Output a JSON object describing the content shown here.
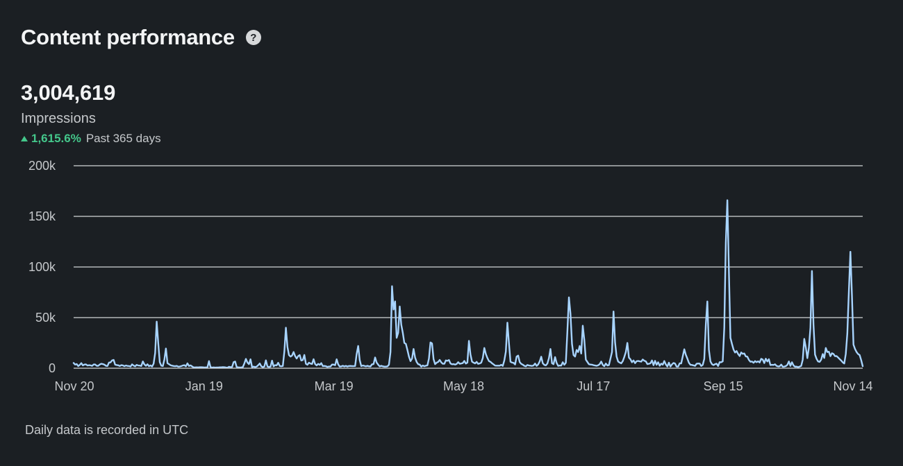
{
  "header": {
    "title": "Content performance",
    "help_icon": "question-circle-icon"
  },
  "summary": {
    "value": "3,004,619",
    "label": "Impressions",
    "change_icon": "triangle-up-icon",
    "change_pct": "1,615.6%",
    "change_period": "Past 365 days"
  },
  "colors": {
    "background": "#1b1f23",
    "line": "#a8d4ff",
    "grid": "#d4d6d8",
    "positive": "#44c78b",
    "axis_text": "#c5c8cb"
  },
  "chart_data": {
    "type": "line",
    "title": "",
    "xlabel": "",
    "ylabel": "",
    "ylim": [
      0,
      200000
    ],
    "yticks": [
      0,
      50000,
      100000,
      150000,
      200000
    ],
    "ytick_labels": [
      "0",
      "50k",
      "100k",
      "150k",
      "200k"
    ],
    "xtick_labels": [
      "Nov 20",
      "Jan 19",
      "Mar 19",
      "May 18",
      "Jul 17",
      "Sep 15",
      "Nov 14"
    ],
    "grid": true,
    "series": [
      {
        "values": [
          5200,
          3600,
          4100,
          2100,
          3300,
          5000,
          2800,
          3600,
          3800,
          2700,
          3000,
          2800,
          2300,
          3700,
          3700,
          2400,
          2400,
          3700,
          4400,
          4100,
          3500,
          2400,
          2200,
          5600,
          5800,
          7700,
          8200,
          3500,
          3100,
          2900,
          2200,
          3000,
          2800,
          2000,
          2700,
          2300,
          2200,
          1700,
          3800,
          2600,
          1900,
          3300,
          2700,
          2600,
          2200,
          6700,
          3800,
          2400,
          3900,
          2000,
          2800,
          1700,
          4500,
          15000,
          46000,
          25000,
          6000,
          2500,
          2200,
          8500,
          19500,
          5000,
          4000,
          3000,
          2500,
          2200,
          2000,
          2300,
          1600,
          1700,
          2100,
          2700,
          3000,
          1900,
          4800,
          2200,
          2800,
          1800,
          800,
          800,
          900,
          800,
          1000,
          1000,
          900,
          700,
          800,
          800,
          7000,
          1100,
          600,
          800,
          600,
          700,
          700,
          900,
          900,
          1100,
          1000,
          700,
          500,
          1400,
          1100,
          1200,
          6000,
          6600,
          1200,
          900,
          700,
          800,
          1100,
          4700,
          9200,
          5600,
          4000,
          8800,
          1100,
          1600,
          1100,
          1600,
          3000,
          4700,
          1900,
          1100,
          1700,
          7800,
          1700,
          1200,
          1600,
          7500,
          1800,
          3000,
          2800,
          5400,
          2200,
          1900,
          2200,
          16500,
          40000,
          21000,
          13000,
          11500,
          12500,
          16000,
          12000,
          9600,
          12000,
          13000,
          7600,
          8100,
          13100,
          4400,
          3400,
          5500,
          4600,
          4200,
          8900,
          4100,
          2800,
          4300,
          3300,
          5000,
          2100,
          2300,
          2000,
          1300,
          1700,
          1700,
          3600,
          3600,
          3000,
          8800,
          3800,
          1600,
          1800,
          2400,
          1800,
          2300,
          1700,
          2200,
          2300,
          2100,
          2100,
          2200,
          14000,
          22000,
          8000,
          2100,
          2700,
          2300,
          1900,
          2400,
          1900,
          1800,
          3900,
          4100,
          10600,
          5600,
          3500,
          1800,
          2400,
          1900,
          1600,
          1600,
          1800,
          3500,
          16000,
          81000,
          58000,
          66000,
          30000,
          35000,
          61000,
          43000,
          35000,
          25000,
          24000,
          18000,
          11500,
          7000,
          9500,
          19000,
          10500,
          6200,
          4000,
          3600,
          1600,
          2700,
          2000,
          2500,
          2800,
          9600,
          25500,
          24500,
          9000,
          4000,
          5500,
          6200,
          8200,
          5800,
          4400,
          4400,
          7700,
          7300,
          8100,
          4700,
          3900,
          4100,
          3600,
          4200,
          6000,
          4400,
          4700,
          5100,
          7200,
          4600,
          5500,
          27000,
          13500,
          6500,
          5500,
          4800,
          6300,
          4300,
          4700,
          5500,
          10000,
          20000,
          14000,
          10100,
          7100,
          6300,
          4900,
          3800,
          2600,
          2500,
          2500,
          2500,
          3400,
          2300,
          7700,
          16500,
          45000,
          25000,
          6400,
          5600,
          5300,
          3700,
          11500,
          12500,
          6100,
          4300,
          3500,
          2400,
          1900,
          3200,
          2700,
          2500,
          2300,
          2700,
          4600,
          2300,
          3700,
          6700,
          11400,
          4900,
          3300,
          2800,
          4600,
          9900,
          19000,
          4900,
          4000,
          11000,
          5300,
          2300,
          2700,
          2600,
          5900,
          3400,
          5400,
          36500,
          70000,
          54000,
          24000,
          13000,
          11500,
          18000,
          16000,
          22000,
          14500,
          42000,
          28000,
          8500,
          6200,
          4000,
          3600,
          3500,
          3000,
          2700,
          2400,
          2900,
          4000,
          6600,
          3300,
          2000,
          4600,
          2700,
          3100,
          9500,
          16000,
          56000,
          25500,
          11500,
          6600,
          5600,
          4800,
          7000,
          11100,
          16000,
          25000,
          10500,
          8800,
          5900,
          7700,
          5000,
          6900,
          7200,
          6800,
          6500,
          8600,
          7400,
          6800,
          4100,
          4400,
          4900,
          7700,
          3000,
          7300,
          3400,
          5900,
          2500,
          4500,
          3500,
          7100,
          3800,
          1700,
          5500,
          1700,
          3800,
          5200,
          4600,
          1700,
          1600,
          4800,
          4800,
          11700,
          18700,
          13300,
          9500,
          5400,
          3400,
          3200,
          2800,
          2300,
          4400,
          4700,
          4600,
          2200,
          3300,
          9200,
          43000,
          66000,
          18300,
          6700,
          4000,
          3100,
          4000,
          4500,
          2200,
          6000,
          5900,
          6800,
          40000,
          124000,
          166000,
          96000,
          30000,
          24000,
          18500,
          15500,
          17000,
          14100,
          12000,
          15600,
          14200,
          14600,
          11700,
          11400,
          8200,
          6400,
          6600,
          5400,
          7000,
          6000,
          6800,
          5700,
          9300,
          8600,
          5100,
          9400,
          6700,
          8900,
          3100,
          3400,
          3200,
          3900,
          2300,
          1800,
          1900,
          3600,
          1500,
          1600,
          2100,
          3300,
          6700,
          2300,
          5900,
          2800,
          1500,
          1600,
          1000,
          1600,
          2300,
          8300,
          29000,
          20500,
          10000,
          20000,
          40000,
          96000,
          43000,
          13500,
          9300,
          6700,
          6300,
          8500,
          14000,
          10100,
          20000,
          16000,
          16300,
          11900,
          14800,
          14100,
          11900,
          12000,
          10600,
          9000,
          7600,
          5800,
          4700,
          14200,
          34500,
          76000,
          115000,
          72000,
          23300,
          19000,
          16000,
          14000,
          13000,
          8000,
          2000
        ]
      }
    ]
  },
  "footnote": "Daily data is recorded in UTC"
}
